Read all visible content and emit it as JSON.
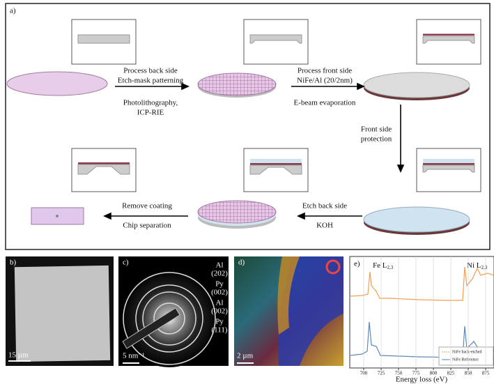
{
  "panel_a": {
    "label": "a)",
    "steps": [
      {
        "lines": [
          "Process back side",
          "Etch-mask patterning",
          "Photolithography,",
          "ICP-RIE"
        ]
      },
      {
        "lines": [
          "Process front side",
          "NiFe/Al (20/2nm)",
          "E-beam evaporation"
        ]
      },
      {
        "lines": [
          "Front side",
          "protection"
        ]
      },
      {
        "lines": [
          "Etch back side",
          "KOH"
        ]
      },
      {
        "lines": [
          "Remove coating",
          "Chip separation"
        ]
      }
    ]
  },
  "panel_b": {
    "label": "b)",
    "scale_bar": "15 µm"
  },
  "panel_c": {
    "label": "c)",
    "rings": [
      {
        "lines": [
          "Al",
          "(202)"
        ]
      },
      {
        "lines": [
          "Py",
          "(002)"
        ]
      },
      {
        "lines": [
          "Al",
          "(002)"
        ]
      },
      {
        "lines": [
          "Py",
          "(111)"
        ]
      }
    ],
    "scale_bar": "5 nm⁻¹"
  },
  "panel_d": {
    "label": "d)",
    "scale_bar": "2 µm"
  },
  "panel_e": {
    "label": "e)",
    "edges": [
      {
        "element": "Fe L",
        "sub": "2,3"
      },
      {
        "element": "Ni L",
        "sub": "2,3"
      }
    ],
    "legend": [
      "NiFe back-etched",
      "NiFe Reference"
    ],
    "xlim": [
      680,
      887
    ],
    "xticks": [
      700,
      725,
      750,
      775,
      800,
      825,
      850,
      875
    ],
    "xlabel": "Energy loss (eV)"
  }
}
